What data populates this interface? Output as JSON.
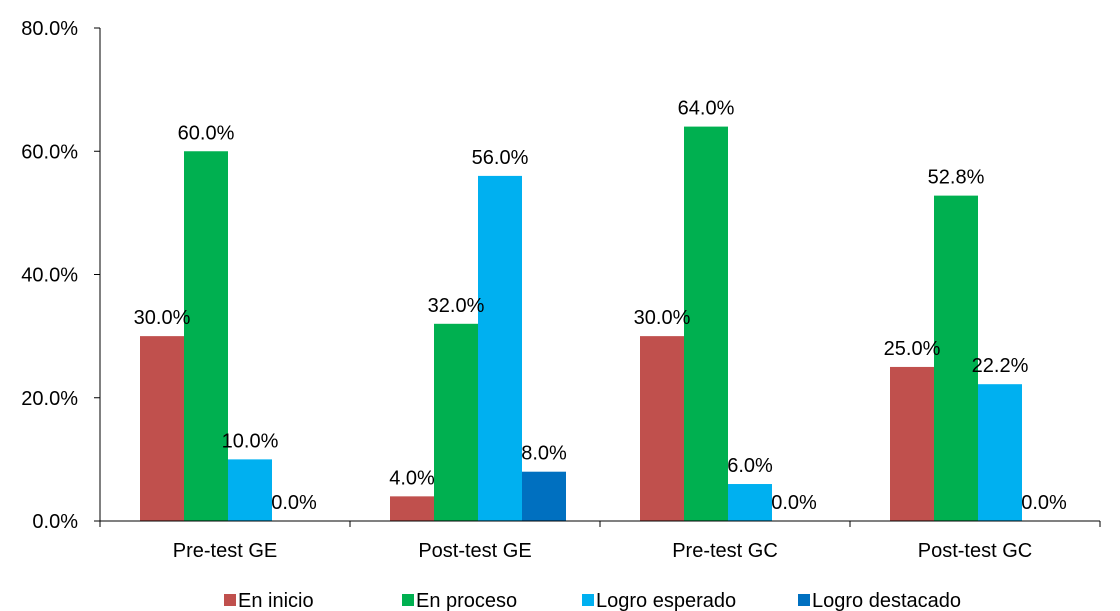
{
  "chart_data": {
    "type": "bar",
    "title": "",
    "xlabel": "",
    "ylabel": "",
    "categories": [
      "Pre-test GE",
      "Post-test GE",
      "Pre-test GC",
      "Post-test GC"
    ],
    "ylim": [
      0,
      80
    ],
    "yticks": [
      "0.0%",
      "20.0%",
      "40.0%",
      "60.0%",
      "80.0%"
    ],
    "grid": false,
    "legend_position": "bottom",
    "series": [
      {
        "name": "En inicio",
        "color": "#C0504D",
        "values": [
          30.0,
          4.0,
          30.0,
          25.0
        ],
        "labels": [
          "30.0%",
          "4.0%",
          "30.0%",
          "25.0%"
        ]
      },
      {
        "name": "En proceso",
        "color": "#00B050",
        "values": [
          60.0,
          32.0,
          64.0,
          52.8
        ],
        "labels": [
          "60.0%",
          "32.0%",
          "64.0%",
          "52.8%"
        ]
      },
      {
        "name": "Logro esperado",
        "color": "#00B0F0",
        "values": [
          10.0,
          56.0,
          6.0,
          22.2
        ],
        "labels": [
          "10.0%",
          "56.0%",
          "6.0%",
          "22.2%"
        ]
      },
      {
        "name": "Logro destacado",
        "color": "#0070C0",
        "values": [
          0.0,
          8.0,
          0.0,
          0.0
        ],
        "labels": [
          "0.0%",
          "8.0%",
          "0.0%",
          "0.0%"
        ]
      }
    ]
  }
}
